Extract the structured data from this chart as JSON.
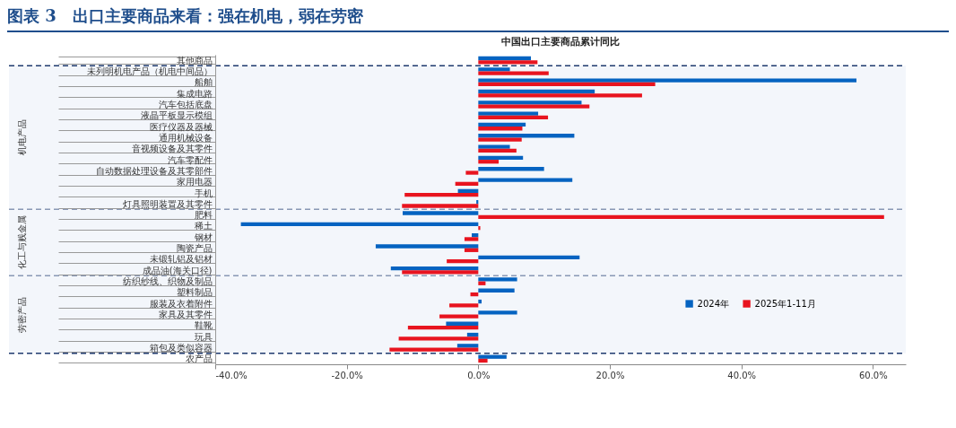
{
  "chart_data": {
    "type": "bar",
    "orientation": "horizontal",
    "title": "图表 3　出口主要商品来看：强在机电，弱在劳密",
    "subtitle": "中国出口主要商品累计同比",
    "categories": [
      "其他商品",
      "未列明机电产品（机电中间品）",
      "船舶",
      "集成电路",
      "汽车包括底盘",
      "液晶平板显示模组",
      "医疗仪器及器械",
      "通用机械设备",
      "音视频设备及其零件",
      "汽车零配件",
      "自动数据处理设备及其零部件",
      "家用电器",
      "手机",
      "灯具照明装置及其零件",
      "肥料",
      "稀土",
      "钢材",
      "陶瓷产品",
      "未锻轧铝及铝材",
      "成品油(海关口径)",
      "纺织纱线、织物及制品",
      "塑料制品",
      "服装及衣着附件",
      "家具及其零件",
      "鞋靴",
      "玩具",
      "箱包及类似容器",
      "农产品"
    ],
    "series": [
      {
        "name": "2024年",
        "color": "#0563c1",
        "values": [
          8.0,
          4.8,
          57.5,
          17.7,
          15.7,
          9.1,
          7.2,
          14.6,
          4.8,
          6.8,
          10.0,
          14.3,
          -3.1,
          -0.3,
          -11.5,
          -36.1,
          -1.0,
          -15.6,
          15.4,
          -13.3,
          5.9,
          5.5,
          0.5,
          5.9,
          -4.9,
          -1.7,
          -3.2,
          4.3
        ]
      },
      {
        "name": "2025年1-11月",
        "color": "#e8141f",
        "values": [
          9.0,
          10.7,
          26.9,
          24.9,
          16.9,
          10.6,
          6.7,
          6.6,
          5.8,
          3.1,
          -1.9,
          -3.5,
          -11.2,
          -11.6,
          61.7,
          0.3,
          -2.1,
          -2.1,
          -4.8,
          -11.6,
          1.1,
          -1.2,
          -4.4,
          -5.9,
          -10.7,
          -12.1,
          -13.5,
          1.4
        ]
      }
    ],
    "xlim": [
      -40,
      65
    ],
    "xticks": [
      {
        "value": -40,
        "label": "-40.0%"
      },
      {
        "value": -20,
        "label": "-20.0%"
      },
      {
        "value": 0,
        "label": "0.0%"
      },
      {
        "value": 20,
        "label": "20.0%"
      },
      {
        "value": 40,
        "label": "40.0%"
      },
      {
        "value": 60,
        "label": "60.0%"
      }
    ],
    "bands": [
      {
        "axis": "y",
        "from": "未列明机电产品（机电中间品）",
        "to": "灯具照明装置及其零件",
        "label": "机电产品"
      },
      {
        "axis": "y",
        "from": "肥料",
        "to": "成品油(海关口径)",
        "label": "化工与贱金属"
      },
      {
        "axis": "y",
        "from": "纺织纱线、织物及制品",
        "to": "箱包及类似容器",
        "label": "劳密产品"
      }
    ],
    "grid": false,
    "legend": "bottom right"
  }
}
